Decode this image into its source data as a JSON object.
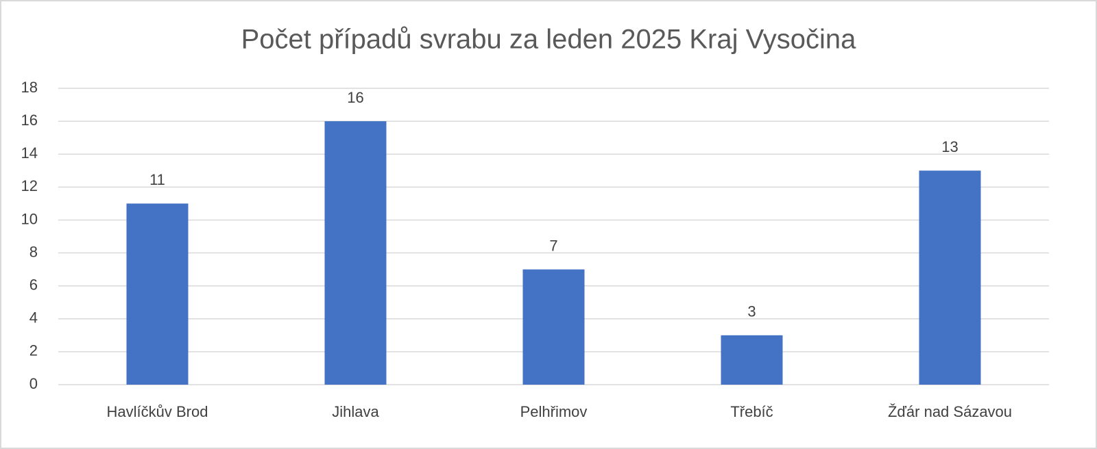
{
  "chart_data": {
    "type": "bar",
    "title": "Počet případů svrabu za leden 2025 Kraj Vysočina",
    "categories": [
      "Havlíčkův Brod",
      "Jihlava",
      "Pelhřimov",
      "Třebíč",
      "Žďár nad Sázavou"
    ],
    "values": [
      11,
      16,
      7,
      3,
      13
    ],
    "color": "#4472c4",
    "ylim": [
      0,
      18
    ],
    "yticks": [
      0,
      2,
      4,
      6,
      8,
      10,
      12,
      14,
      16,
      18
    ],
    "grid": true,
    "data_labels": true
  }
}
